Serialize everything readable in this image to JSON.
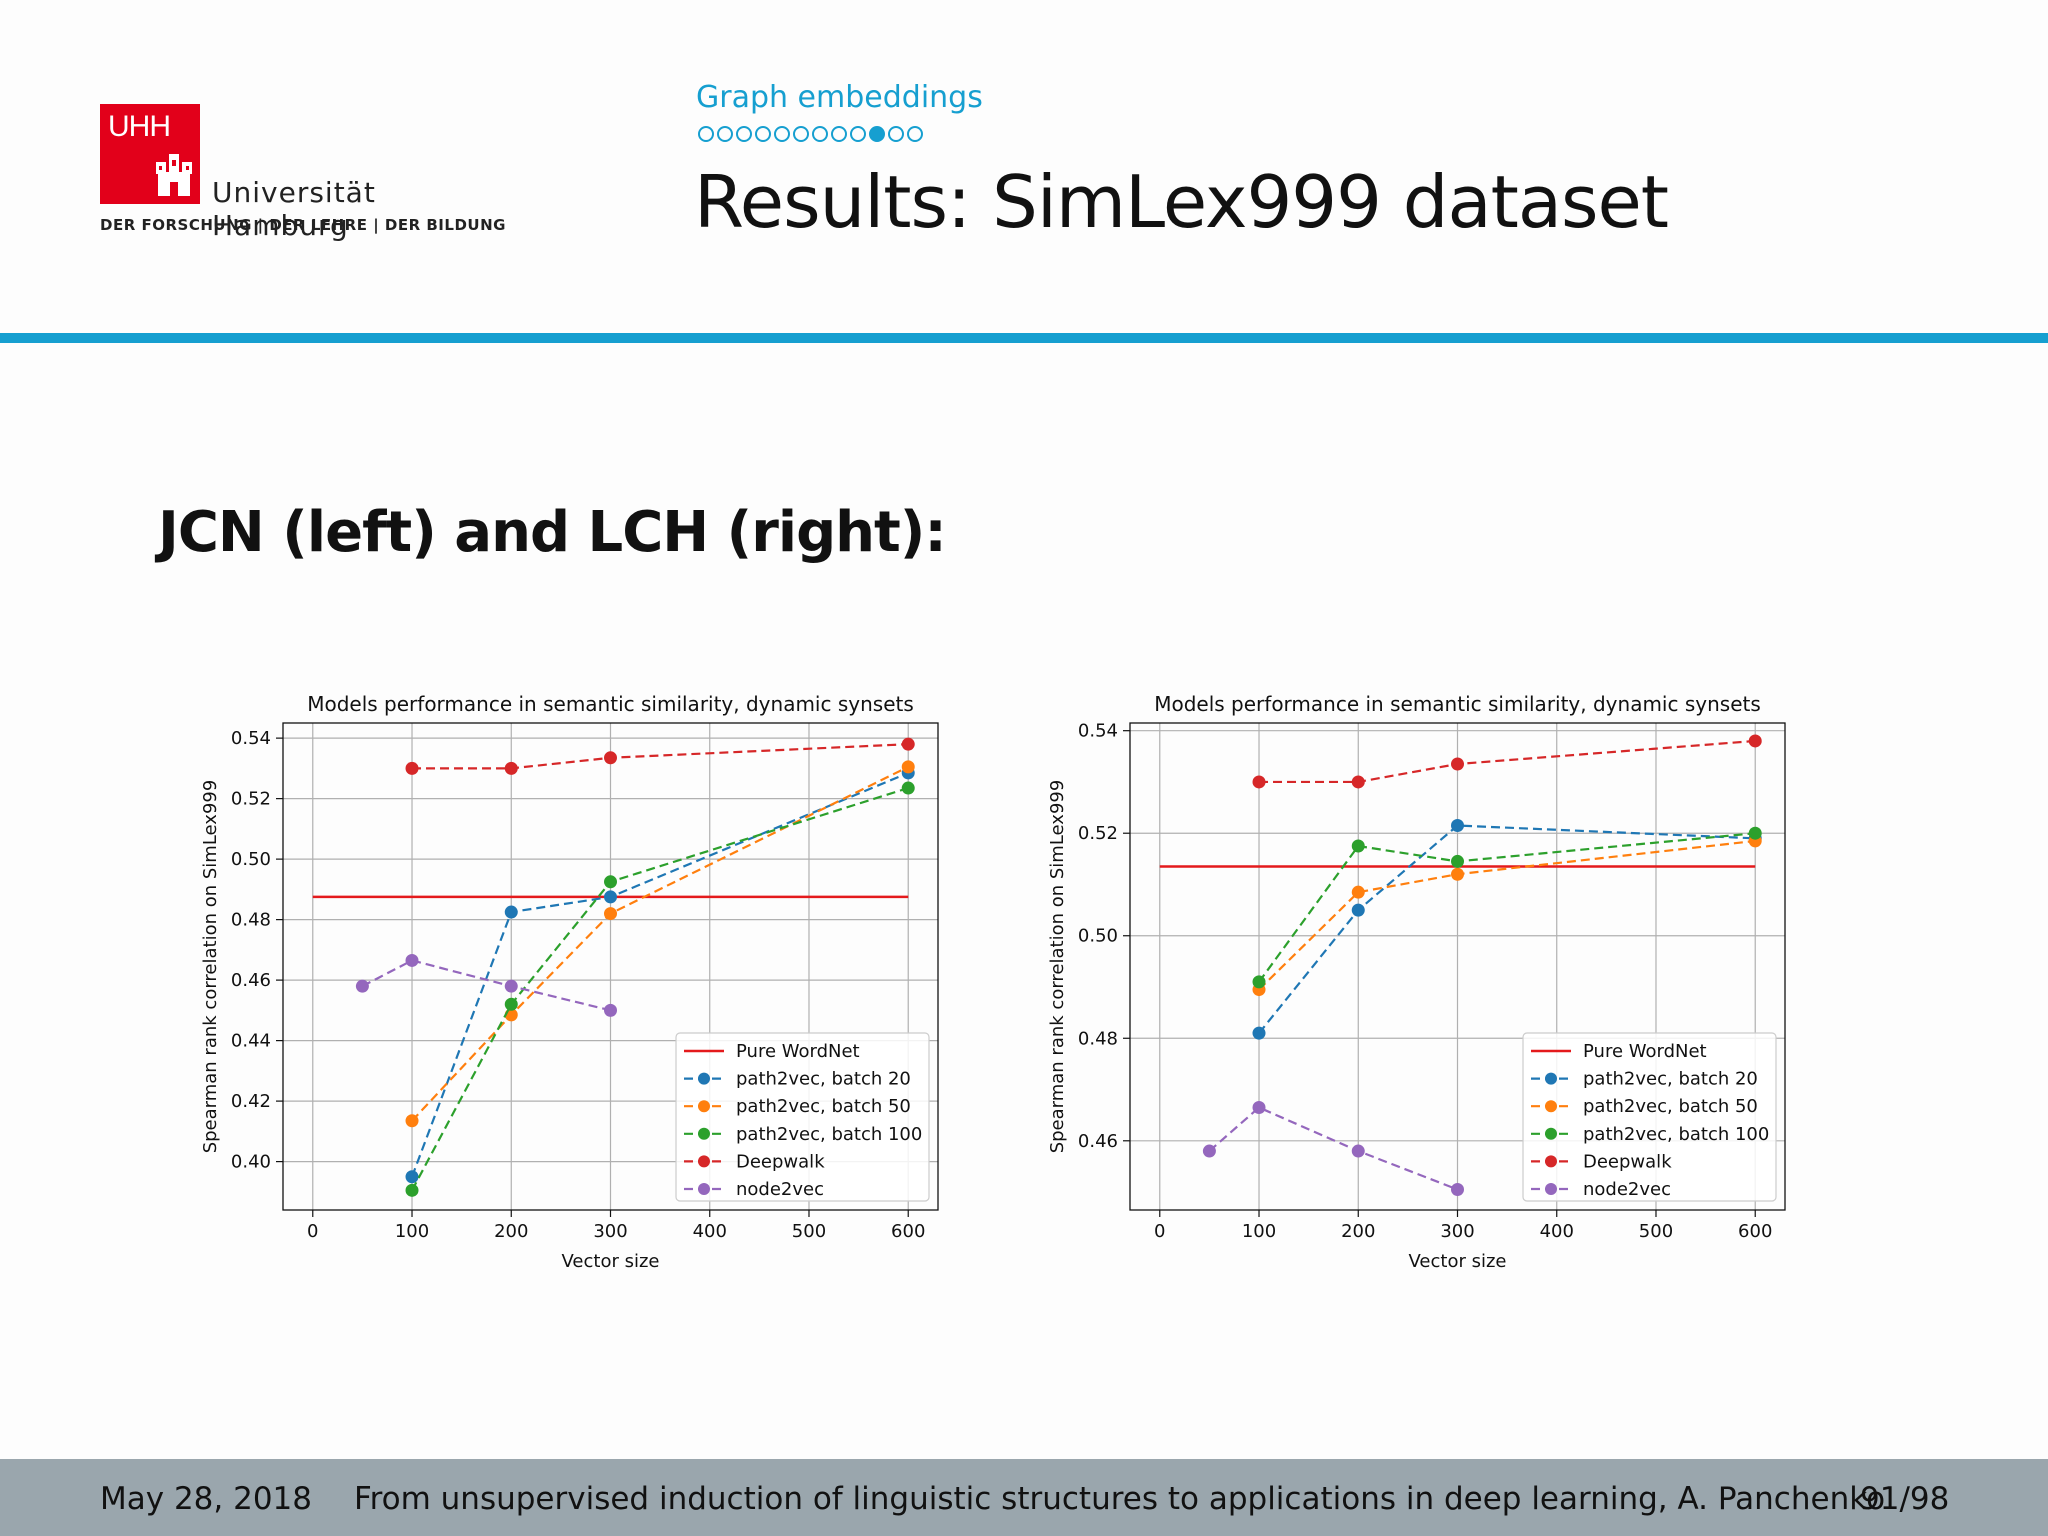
{
  "logo": {
    "mark_text": "UHH",
    "name": "Universität Hamburg",
    "motto": "DER FORSCHUNG | DER LEHRE | DER BILDUNG",
    "color": "#e2001a"
  },
  "header": {
    "section": "Graph embeddings",
    "title": "Results: SimLex999 dataset",
    "progress": {
      "total": 12,
      "current": 10
    },
    "accent_color": "#169fd0"
  },
  "subtitle": "JCN (left) and LCH (right):",
  "footer": {
    "date": "May 28, 2018",
    "talk": "From unsupervised induction of linguistic structures to applications in deep learning, A. Panchenko",
    "page": "91/98"
  },
  "chart_data": [
    {
      "type": "line",
      "title": "Models performance in semantic similarity, dynamic synsets",
      "xlabel": "Vector size",
      "ylabel": "Spearman rank correlation on SimLex999",
      "xlim": [
        -30,
        630
      ],
      "ylim": [
        0.384,
        0.545
      ],
      "xticks": [
        0,
        100,
        200,
        300,
        400,
        500,
        600
      ],
      "yticks": [
        0.4,
        0.42,
        0.44,
        0.46,
        0.48,
        0.5,
        0.52,
        0.54
      ],
      "grid": true,
      "legend_position": "lower right",
      "series": [
        {
          "name": "Pure WordNet",
          "style": "solid",
          "color": "#e41a1c",
          "x": [
            0,
            600
          ],
          "y": [
            0.4875,
            0.4875
          ]
        },
        {
          "name": "path2vec, batch 20",
          "style": "dashed-markers",
          "color": "#1f77b4",
          "x": [
            100,
            200,
            300,
            600
          ],
          "y": [
            0.395,
            0.4825,
            0.4875,
            0.5285
          ]
        },
        {
          "name": "path2vec, batch 50",
          "style": "dashed-markers",
          "color": "#ff7f0e",
          "x": [
            100,
            200,
            300,
            600
          ],
          "y": [
            0.4135,
            0.4485,
            0.482,
            0.5305
          ]
        },
        {
          "name": "path2vec, batch 100",
          "style": "dashed-markers",
          "color": "#2ca02c",
          "x": [
            100,
            200,
            300,
            600
          ],
          "y": [
            0.3905,
            0.452,
            0.4925,
            0.5235
          ]
        },
        {
          "name": "Deepwalk",
          "style": "dashed-markers",
          "color": "#d62728",
          "x": [
            100,
            200,
            300,
            600
          ],
          "y": [
            0.53,
            0.53,
            0.5335,
            0.538
          ]
        },
        {
          "name": "node2vec",
          "style": "dashed-markers",
          "color": "#9467bd",
          "x": [
            50,
            100,
            200,
            300
          ],
          "y": [
            0.458,
            0.4665,
            0.458,
            0.45
          ]
        }
      ]
    },
    {
      "type": "line",
      "title": "Models performance in semantic similarity, dynamic synsets",
      "xlabel": "Vector size",
      "ylabel": "Spearman rank correlation on SimLex999",
      "xlim": [
        -30,
        630
      ],
      "ylim": [
        0.4465,
        0.5415
      ],
      "xticks": [
        0,
        100,
        200,
        300,
        400,
        500,
        600
      ],
      "yticks": [
        0.46,
        0.48,
        0.5,
        0.52,
        0.54
      ],
      "grid": true,
      "legend_position": "lower right",
      "series": [
        {
          "name": "Pure WordNet",
          "style": "solid",
          "color": "#e41a1c",
          "x": [
            0,
            600
          ],
          "y": [
            0.5135,
            0.5135
          ]
        },
        {
          "name": "path2vec, batch 20",
          "style": "dashed-markers",
          "color": "#1f77b4",
          "x": [
            100,
            200,
            300,
            600
          ],
          "y": [
            0.481,
            0.505,
            0.5215,
            0.519
          ]
        },
        {
          "name": "path2vec, batch 50",
          "style": "dashed-markers",
          "color": "#ff7f0e",
          "x": [
            100,
            200,
            300,
            600
          ],
          "y": [
            0.4895,
            0.5085,
            0.512,
            0.5185
          ]
        },
        {
          "name": "path2vec, batch 100",
          "style": "dashed-markers",
          "color": "#2ca02c",
          "x": [
            100,
            200,
            300,
            600
          ],
          "y": [
            0.491,
            0.5175,
            0.5145,
            0.52
          ]
        },
        {
          "name": "Deepwalk",
          "style": "dashed-markers",
          "color": "#d62728",
          "x": [
            100,
            200,
            300,
            600
          ],
          "y": [
            0.53,
            0.53,
            0.5335,
            0.538
          ]
        },
        {
          "name": "node2vec",
          "style": "dashed-markers",
          "color": "#9467bd",
          "x": [
            50,
            100,
            200,
            300
          ],
          "y": [
            0.458,
            0.4665,
            0.458,
            0.4505
          ]
        }
      ]
    }
  ]
}
